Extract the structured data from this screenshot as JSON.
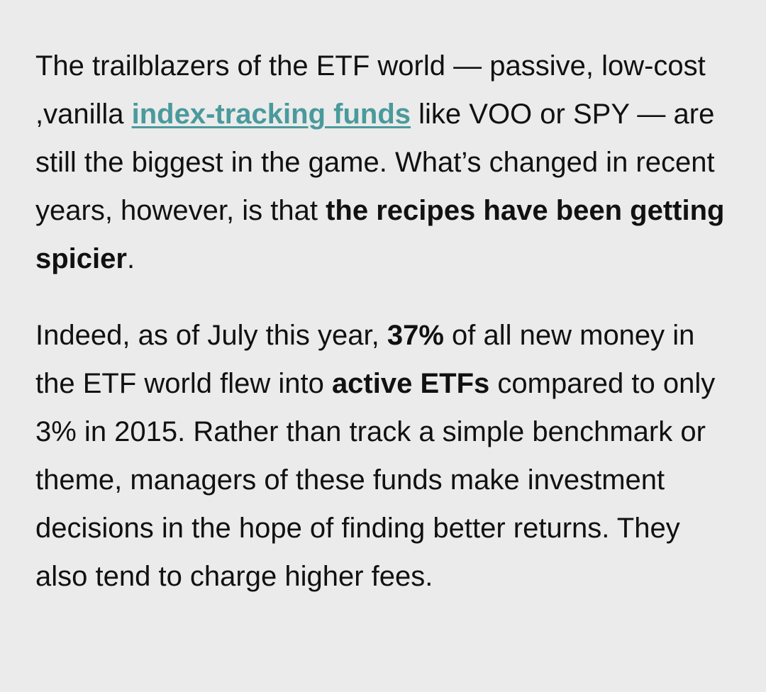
{
  "article": {
    "paragraph1": {
      "text_1": "The trailblazers of the ETF world — passive, low-cost ,vanilla ",
      "link_text": "index-tracking funds",
      "text_2": " like VOO or SPY — are still the biggest in the game. What’s changed in recent years, however, is that ",
      "bold_text": "the recipes have been getting spicier",
      "text_3": "."
    },
    "paragraph2": {
      "text_1": "Indeed, as of July this year, ",
      "bold_1": "37%",
      "text_2": " of all new money in the ETF world flew into ",
      "bold_2": "active ETFs",
      "text_3": " compared to only 3% in 2015. Rather than track a simple benchmark or theme, managers of these funds make investment decisions in the hope of finding better returns. They also tend to charge higher fees."
    },
    "colors": {
      "background": "#ebebeb",
      "text": "#111111",
      "link": "#4a9a9c"
    }
  }
}
